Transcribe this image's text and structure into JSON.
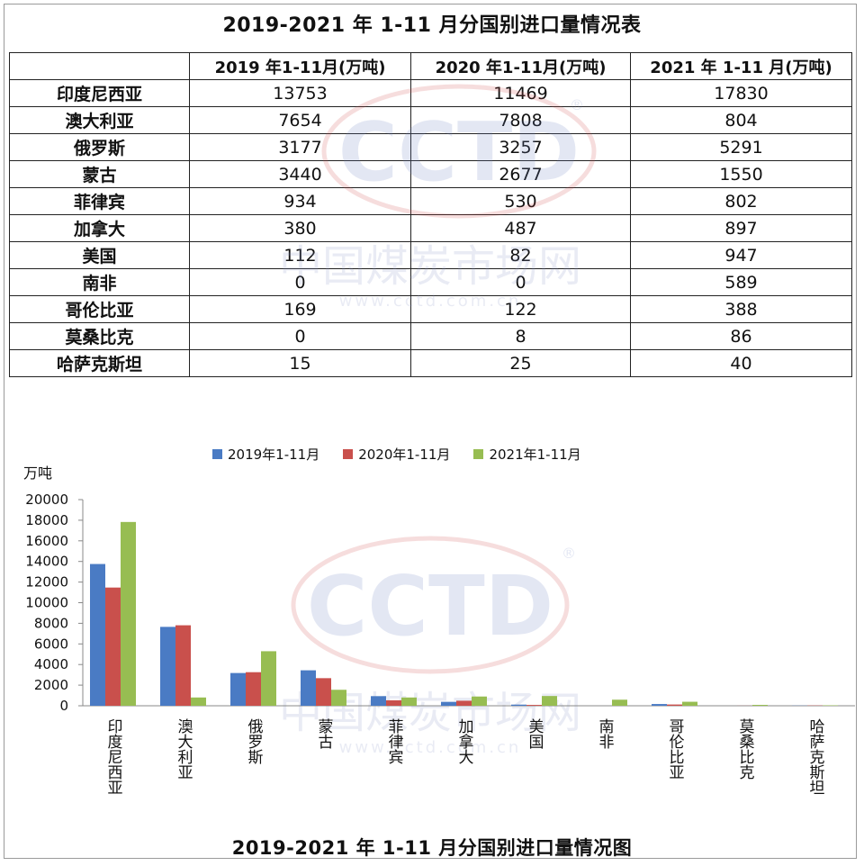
{
  "table": {
    "title": "2019-2021 年 1-11 月分国别进口量情况表",
    "header": [
      "",
      "2019 年1-11月(万吨)",
      "2020 年1-11月(万吨)",
      "2021 年 1-11 月(万吨)"
    ],
    "rows": [
      {
        "country": "印度尼西亚",
        "v2019": "13753",
        "v2020": "11469",
        "v2021": "17830"
      },
      {
        "country": "澳大利亚",
        "v2019": "7654",
        "v2020": "7808",
        "v2021": "804"
      },
      {
        "country": "俄罗斯",
        "v2019": "3177",
        "v2020": "3257",
        "v2021": "5291"
      },
      {
        "country": "蒙古",
        "v2019": "3440",
        "v2020": "2677",
        "v2021": "1550"
      },
      {
        "country": "菲律宾",
        "v2019": "934",
        "v2020": "530",
        "v2021": "802"
      },
      {
        "country": "加拿大",
        "v2019": "380",
        "v2020": "487",
        "v2021": "897"
      },
      {
        "country": "美国",
        "v2019": "112",
        "v2020": "82",
        "v2021": "947"
      },
      {
        "country": "南非",
        "v2019": "0",
        "v2020": "0",
        "v2021": "589"
      },
      {
        "country": "哥伦比亚",
        "v2019": "169",
        "v2020": "122",
        "v2021": "388"
      },
      {
        "country": "莫桑比克",
        "v2019": "0",
        "v2020": "8",
        "v2021": "86"
      },
      {
        "country": "哈萨克斯坦",
        "v2019": "15",
        "v2020": "25",
        "v2021": "40"
      }
    ]
  },
  "watermark": {
    "logo": "CCTD",
    "registered": "®",
    "name": "中国煤炭市场网",
    "url": "www.cctd.com.cn"
  },
  "chart_data": {
    "type": "bar",
    "title": "2019-2021 年 1-11 月分国别进口量情况图",
    "ylabel": "万吨",
    "ylim": [
      0,
      20000
    ],
    "yticks": [
      "0",
      "2000",
      "4000",
      "6000",
      "8000",
      "10000",
      "12000",
      "14000",
      "16000",
      "18000",
      "20000"
    ],
    "categories": [
      "印度尼西亚",
      "澳大利亚",
      "俄罗斯",
      "蒙古",
      "菲律宾",
      "加拿大",
      "美国",
      "南非",
      "哥伦比亚",
      "莫桑比克",
      "哈萨克斯坦"
    ],
    "series": [
      {
        "name": "2019年1-11月",
        "color": "#4a7bc4",
        "values": [
          13753,
          7654,
          3177,
          3440,
          934,
          380,
          112,
          0,
          169,
          0,
          15
        ]
      },
      {
        "name": "2020年1-11月",
        "color": "#c9504c",
        "values": [
          11469,
          7808,
          3257,
          2677,
          530,
          487,
          82,
          0,
          122,
          8,
          25
        ]
      },
      {
        "name": "2021年1-11月",
        "color": "#97bd52",
        "values": [
          17830,
          804,
          5291,
          1550,
          802,
          897,
          947,
          589,
          388,
          86,
          40
        ]
      }
    ],
    "legend_position": "top",
    "grid": false
  }
}
